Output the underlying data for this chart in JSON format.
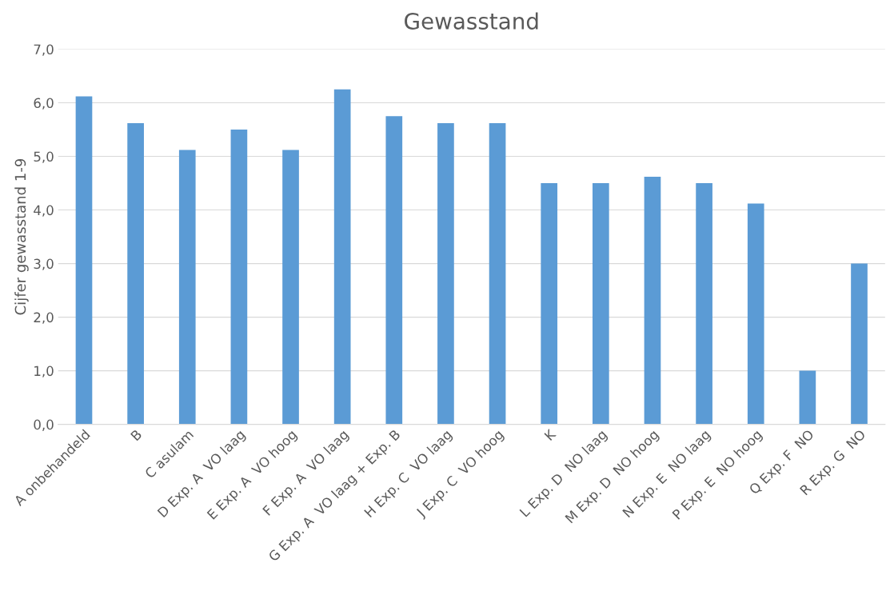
{
  "chart_data": {
    "type": "bar",
    "title": "Gewasstand",
    "ylabel": "Cijfer gewasstand 1-9",
    "categories": [
      "A onbehandeld",
      "B",
      "C asulam",
      "D Exp. A  VO laag",
      "E Exp. A  VO hoog",
      "F Exp. A  VO laag",
      "G Exp. A  VO laag + Exp. B",
      "H Exp. C  VO laag",
      "J Exp. C  VO hoog",
      "K",
      "L Exp. D  NO laag",
      "M Exp. D  NO hoog",
      "N Exp. E  NO laag",
      "P Exp. E  NO hoog",
      "Q Exp. F  NO",
      "R Exp. G  NO"
    ],
    "values": [
      6.12,
      5.62,
      5.12,
      5.5,
      5.12,
      6.25,
      5.75,
      5.62,
      5.62,
      4.5,
      4.5,
      4.62,
      4.5,
      4.12,
      1.0,
      3.0
    ],
    "color": "#5b9bd5",
    "ylim": [
      0,
      7
    ],
    "yticks": [
      {
        "value": 0,
        "label": "0,0"
      },
      {
        "value": 1,
        "label": "1,0"
      },
      {
        "value": 2,
        "label": "2,0"
      },
      {
        "value": 3,
        "label": "3,0"
      },
      {
        "value": 4,
        "label": "4,0"
      },
      {
        "value": 5,
        "label": "5,0"
      },
      {
        "value": 6,
        "label": "6,0"
      },
      {
        "value": 7,
        "label": "7,0"
      }
    ],
    "grid": "y",
    "legend": false
  }
}
